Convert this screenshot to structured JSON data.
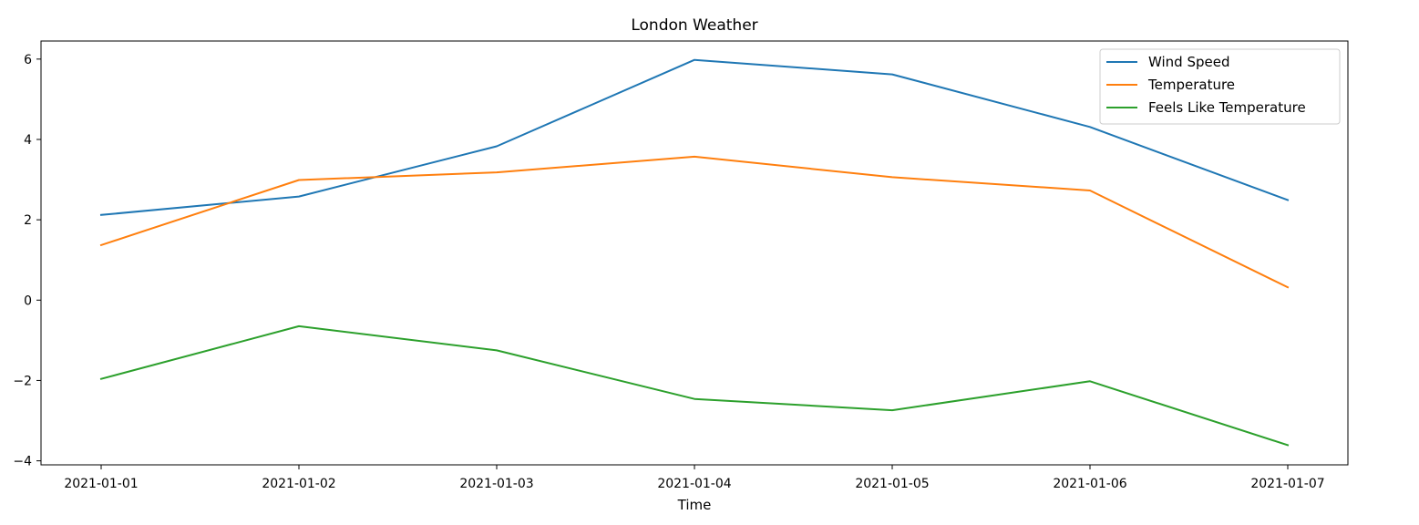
{
  "chart_data": {
    "type": "line",
    "title": "London Weather",
    "xlabel": "Time",
    "ylabel": "",
    "categories": [
      "2021-01-01",
      "2021-01-02",
      "2021-01-03",
      "2021-01-04",
      "2021-01-05",
      "2021-01-06",
      "2021-01-07"
    ],
    "ylim": [
      -4.1,
      6.45
    ],
    "yticks": [
      -4,
      -2,
      0,
      2,
      4,
      6
    ],
    "ytick_labels": [
      "−4",
      "−2",
      "0",
      "2",
      "4",
      "6"
    ],
    "grid": false,
    "legend_position": "top-right",
    "series": [
      {
        "name": "Wind Speed",
        "color": "#1f77b4",
        "values": [
          2.12,
          2.58,
          3.83,
          5.98,
          5.62,
          4.31,
          2.49
        ]
      },
      {
        "name": "Temperature",
        "color": "#ff7f0e",
        "values": [
          1.37,
          2.99,
          3.18,
          3.57,
          3.06,
          2.73,
          0.32
        ]
      },
      {
        "name": "Feels Like Temperature",
        "color": "#2ca02c",
        "values": [
          -1.96,
          -0.65,
          -1.25,
          -2.46,
          -2.74,
          -2.02,
          -3.61
        ]
      }
    ]
  }
}
